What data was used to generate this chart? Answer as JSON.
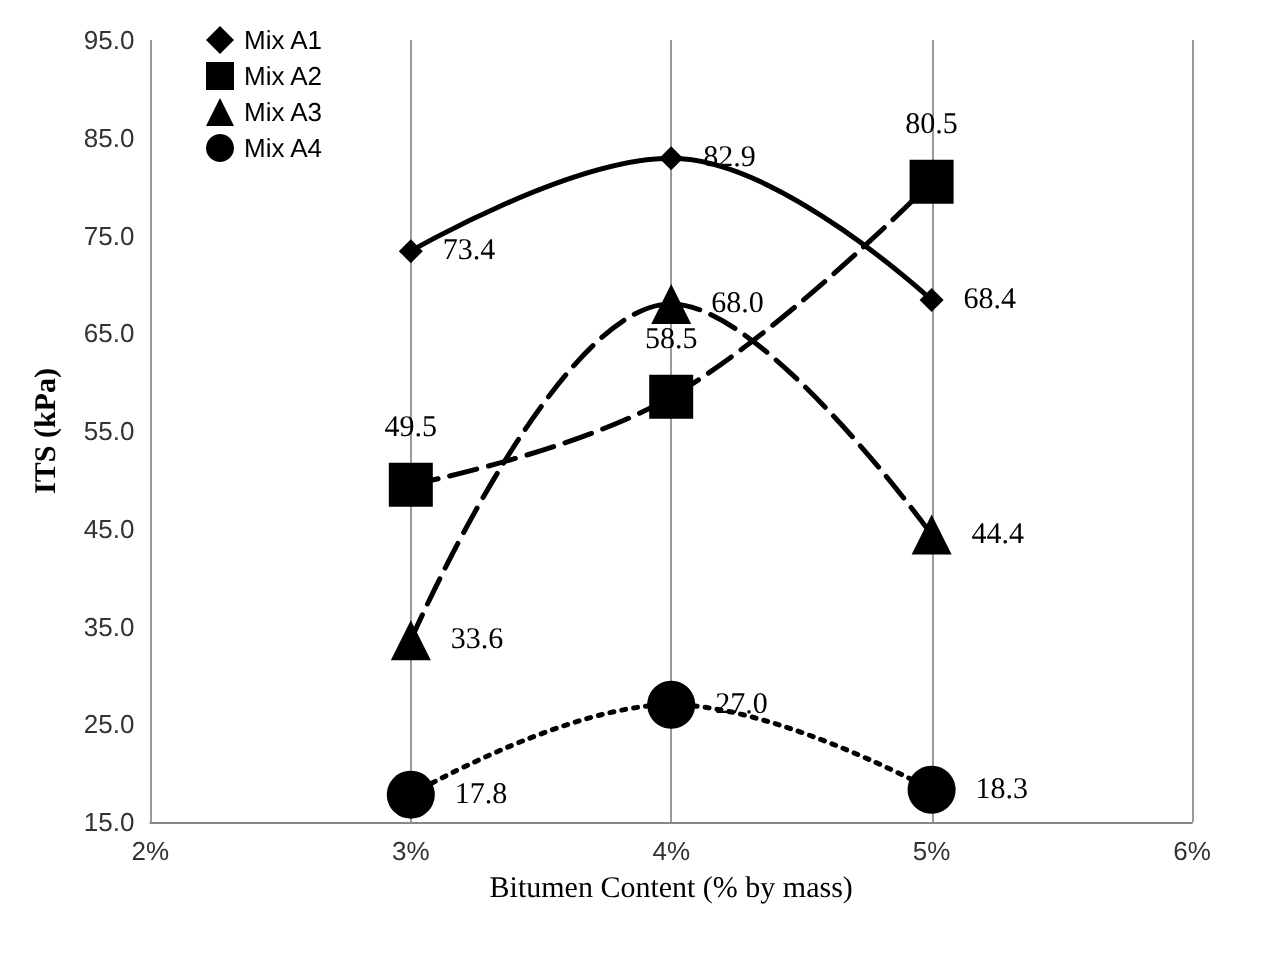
{
  "chart_data": {
    "type": "line",
    "xlabel": "Bitumen Content (% by mass)",
    "ylabel": "ITS (kPa)",
    "x": [
      3,
      4,
      5
    ],
    "series": [
      {
        "name": "Mix A1",
        "color": "#000000",
        "values": [
          73.4,
          82.9,
          68.4
        ],
        "marker": "diamond",
        "line_style": "solid"
      },
      {
        "name": "Mix A2",
        "color": "#000000",
        "values": [
          49.5,
          58.5,
          80.5
        ],
        "marker": "square",
        "line_style": "dashed"
      },
      {
        "name": "Mix A3",
        "color": "#000000",
        "values": [
          33.6,
          68.0,
          44.4
        ],
        "value_labels": [
          "33.6",
          "68.0",
          "44.4"
        ],
        "marker": "triangle",
        "line_style": "dashed"
      },
      {
        "name": "Mix A4",
        "color": "#000000",
        "values": [
          17.8,
          27.0,
          18.3
        ],
        "value_labels": [
          "17.8",
          "27.0",
          "18.3"
        ],
        "marker": "circle",
        "line_style": "dotted"
      }
    ],
    "xlim": [
      2,
      6
    ],
    "xticks": [
      {
        "value": 2,
        "label": "2%"
      },
      {
        "value": 3,
        "label": "3%"
      },
      {
        "value": 4,
        "label": "4%"
      },
      {
        "value": 5,
        "label": "5%"
      },
      {
        "value": 6,
        "label": "6%"
      }
    ],
    "ylim": [
      15,
      95
    ],
    "yticks": [
      {
        "value": 15,
        "label": "15.0"
      },
      {
        "value": 25,
        "label": "25.0"
      },
      {
        "value": 35,
        "label": "35.0"
      },
      {
        "value": 45,
        "label": "45.0"
      },
      {
        "value": 55,
        "label": "55.0"
      },
      {
        "value": 65,
        "label": "65.0"
      },
      {
        "value": 75,
        "label": "75.0"
      },
      {
        "value": 85,
        "label": "85.0"
      },
      {
        "value": 95,
        "label": "95.0"
      }
    ],
    "grid": "x",
    "legend": "top left",
    "data_labels": true
  }
}
